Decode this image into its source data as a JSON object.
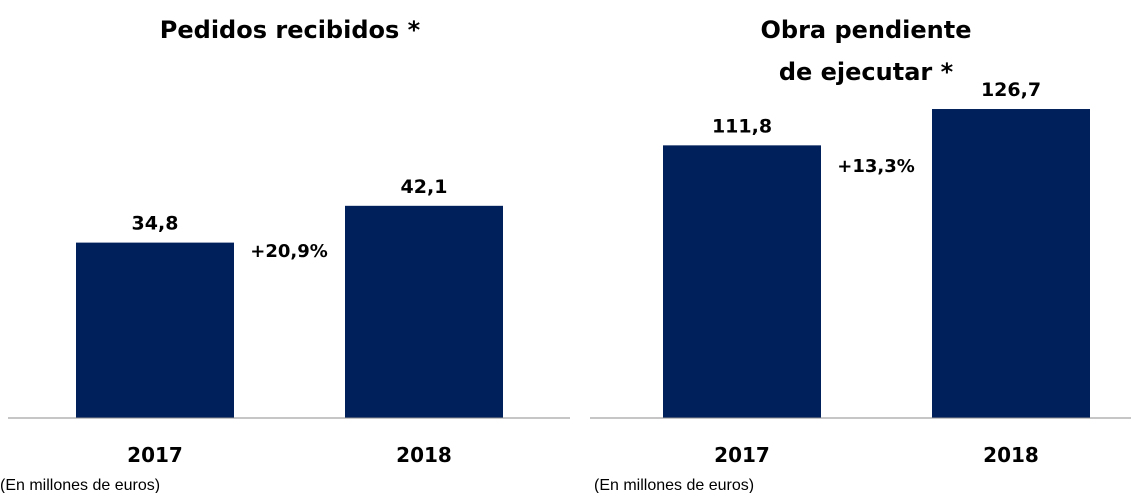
{
  "colors": {
    "bar": "#00205b",
    "axis": "#8c8c8c",
    "text": "#000000"
  },
  "chart_data": [
    {
      "type": "bar",
      "title_lines": [
        "Pedidos recibidos *"
      ],
      "categories": [
        "2017",
        "2018"
      ],
      "values": [
        34.8,
        42.1
      ],
      "value_labels": [
        "34,8",
        "42,1"
      ],
      "growth_label": "+20,9%",
      "unit_note": "(En millones de euros)",
      "ylim": [
        0,
        75
      ]
    },
    {
      "type": "bar",
      "title_lines": [
        "Obra pendiente",
        "de ejecutar *"
      ],
      "categories": [
        "2017",
        "2018"
      ],
      "values": [
        111.8,
        126.7
      ],
      "value_labels": [
        "111,8",
        "126,7"
      ],
      "growth_label": "+13,3%",
      "unit_note": "(En millones de euros)",
      "ylim": [
        0,
        155
      ]
    }
  ]
}
